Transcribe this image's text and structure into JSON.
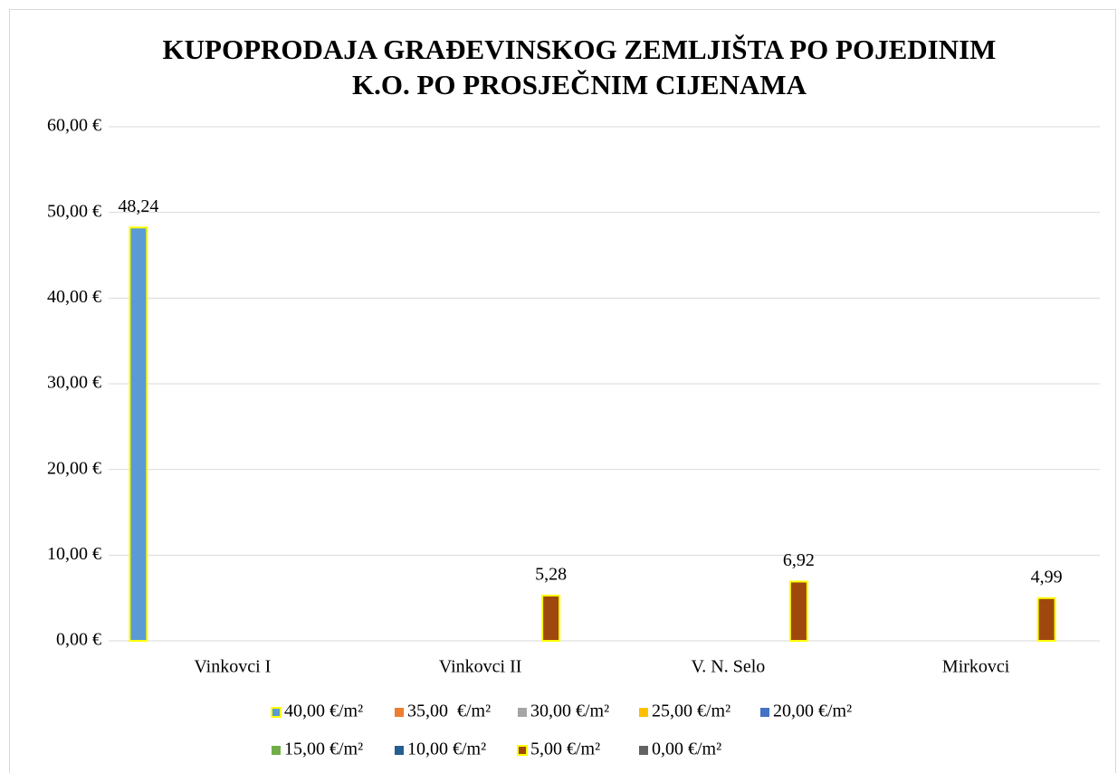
{
  "chart_data": {
    "type": "bar",
    "title": [
      "KUPOPRODAJA GRAĐEVINSKOG ZEMLJIŠTA PO POJEDINIM",
      "K.O. PO PROSJEČNIM CIJENAMA"
    ],
    "categories": [
      "Vinkovci I",
      "Vinkovci II",
      "V. N. Selo",
      "Mirkovci"
    ],
    "series": [
      {
        "name": "40,00 €/m²",
        "color": "#5b9bd5",
        "values": [
          48.24,
          null,
          null,
          null
        ],
        "value_labels": [
          "48,24",
          null,
          null,
          null
        ]
      },
      {
        "name": "35,00  €/m²",
        "color": "#ed7d31",
        "values": [
          null,
          null,
          null,
          null
        ]
      },
      {
        "name": "30,00 €/m²",
        "color": "#a5a5a5",
        "values": [
          null,
          null,
          null,
          null
        ]
      },
      {
        "name": "25,00 €/m²",
        "color": "#ffc000",
        "values": [
          null,
          null,
          null,
          null
        ]
      },
      {
        "name": "20,00 €/m²",
        "color": "#4472c4",
        "values": [
          null,
          null,
          null,
          null
        ]
      },
      {
        "name": "15,00 €/m²",
        "color": "#70ad47",
        "values": [
          null,
          null,
          null,
          null
        ]
      },
      {
        "name": "10,00 €/m²",
        "color": "#255e91",
        "values": [
          null,
          null,
          null,
          null
        ]
      },
      {
        "name": "5,00 €/m²",
        "color": "#9e480e",
        "values": [
          null,
          5.28,
          6.92,
          4.99
        ],
        "value_labels": [
          null,
          "5,28",
          "6,92",
          "4,99"
        ]
      },
      {
        "name": "0,00 €/m²",
        "color": "#636363",
        "values": [
          null,
          null,
          null,
          null
        ]
      }
    ],
    "bar_edge_color": "#ffff00",
    "ylim": [
      0,
      60
    ],
    "yticks": [
      {
        "value": 0,
        "label": "0,00 €"
      },
      {
        "value": 10,
        "label": "10,00 €"
      },
      {
        "value": 20,
        "label": "20,00 €"
      },
      {
        "value": 30,
        "label": "30,00 €"
      },
      {
        "value": 40,
        "label": "40,00 €"
      },
      {
        "value": 50,
        "label": "50,00 €"
      },
      {
        "value": 60,
        "label": "60,00 €"
      }
    ],
    "grid": true
  }
}
